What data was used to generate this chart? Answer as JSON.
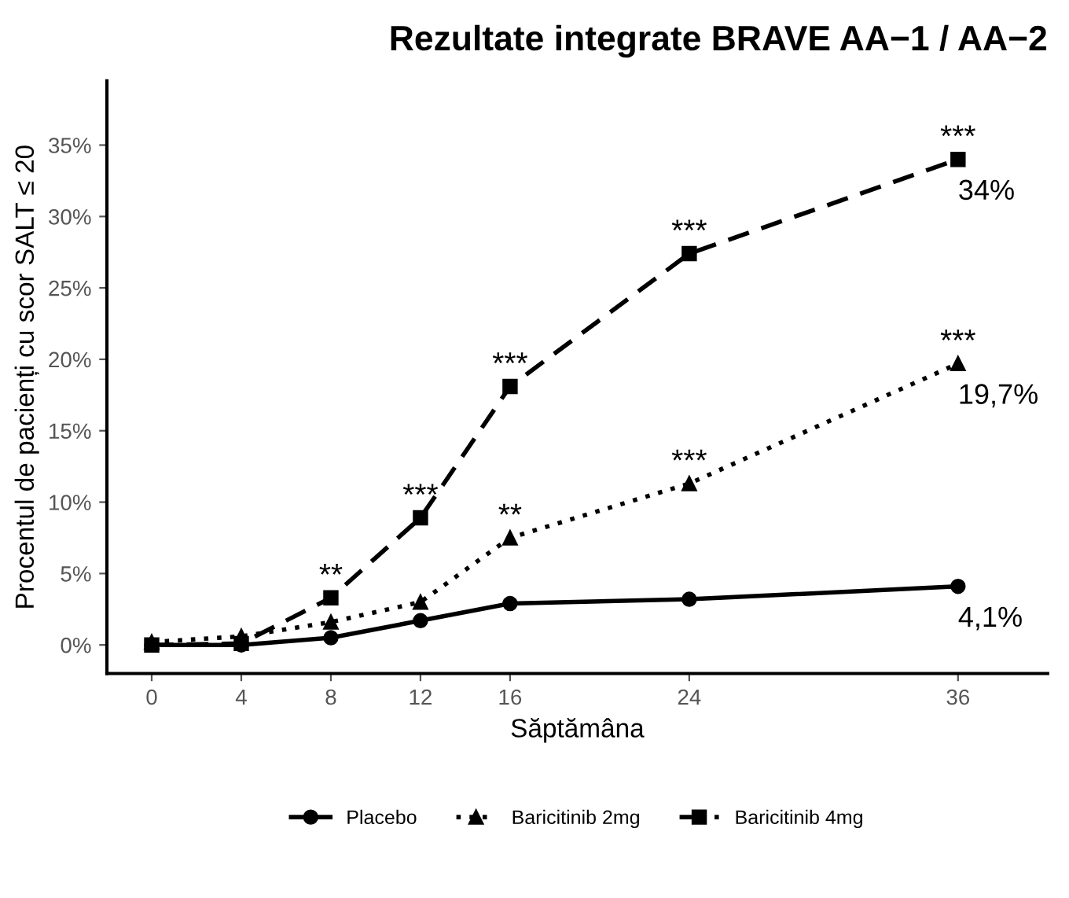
{
  "chart_data": {
    "type": "line",
    "title": "Rezultate integrate BRAVE AA−1 / AA−2",
    "xlabel": "Săptămâna",
    "ylabel": "Procentul de pacienți cu scor SALT ≤ 20",
    "x": [
      0,
      4,
      8,
      12,
      16,
      24,
      36
    ],
    "series": [
      {
        "name": "Placebo",
        "color": "#000000",
        "marker": "circle",
        "line_style": "solid",
        "values": [
          0,
          0,
          0.5,
          1.7,
          2.9,
          3.2,
          4.1
        ],
        "value_labels": [
          null,
          null,
          null,
          null,
          null,
          null,
          "4,1%"
        ]
      },
      {
        "name": "Baricitinib 2mg",
        "color": "#000000",
        "marker": "triangle",
        "line_style": "dotted",
        "values": [
          0.2,
          0.6,
          1.6,
          3.0,
          7.5,
          11.3,
          19.7
        ],
        "value_labels": [
          null,
          null,
          null,
          null,
          null,
          null,
          "19,7%"
        ]
      },
      {
        "name": "Baricitinib 4mg",
        "color": "#000000",
        "marker": "square",
        "line_style": "dashed",
        "values": [
          0,
          0.1,
          3.3,
          8.9,
          18.1,
          27.4,
          34
        ],
        "value_labels": [
          null,
          null,
          null,
          null,
          null,
          null,
          "34%"
        ]
      }
    ],
    "xlim": [
      -2,
      40
    ],
    "xticks": [
      0,
      4,
      8,
      12,
      16,
      24,
      36
    ],
    "ylim": [
      -2,
      39.5
    ],
    "yticks": [
      {
        "value": 0,
        "label": "0%"
      },
      {
        "value": 5,
        "label": "5%"
      },
      {
        "value": 10,
        "label": "10%"
      },
      {
        "value": 15,
        "label": "15%"
      },
      {
        "value": 20,
        "label": "20%"
      },
      {
        "value": 25,
        "label": "25%"
      },
      {
        "value": 30,
        "label": "30%"
      },
      {
        "value": 35,
        "label": "35%"
      }
    ],
    "annotations": [
      {
        "text": "**",
        "x": 8,
        "y": 3.3
      },
      {
        "text": "***",
        "x": 12,
        "y": 8.9
      },
      {
        "text": "***",
        "x": 16,
        "y": 18.1
      },
      {
        "text": "***",
        "x": 24,
        "y": 27.4
      },
      {
        "text": "***",
        "x": 36,
        "y": 34
      },
      {
        "text": "**",
        "x": 16,
        "y": 7.5
      },
      {
        "text": "***",
        "x": 24,
        "y": 11.3
      },
      {
        "text": "***",
        "x": 36,
        "y": 19.7
      }
    ],
    "grid": false,
    "legend": "bottom"
  }
}
